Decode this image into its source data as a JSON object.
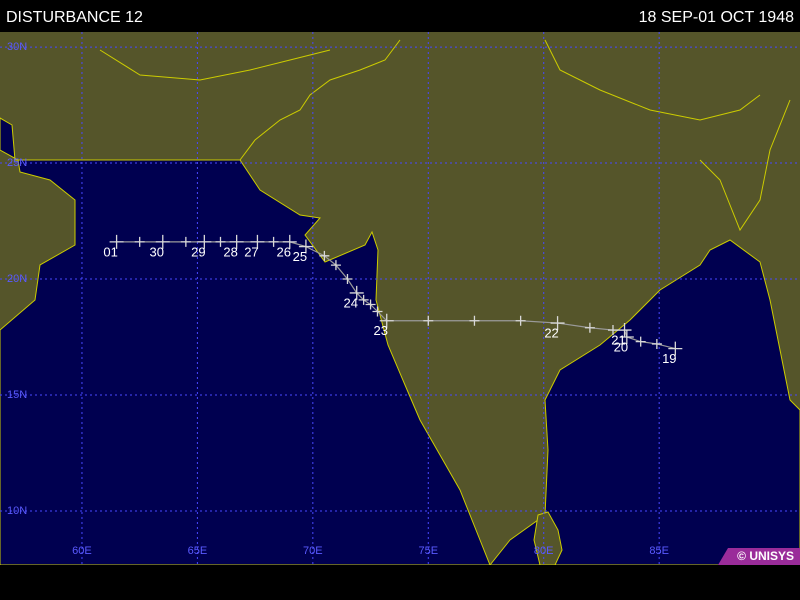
{
  "header": {
    "title": "DISTURBANCE 12",
    "dates": "18 SEP-01 OCT 1948"
  },
  "map": {
    "lonlim": [
      56.45,
      91.1
    ],
    "latlim": [
      7.67,
      30.65
    ],
    "lon_ticks": [
      {
        "value": 60,
        "label": "60E"
      },
      {
        "value": 65,
        "label": "65E"
      },
      {
        "value": 70,
        "label": "70E"
      },
      {
        "value": 75,
        "label": "75E"
      },
      {
        "value": 80,
        "label": "80E"
      },
      {
        "value": 85,
        "label": "85E"
      }
    ],
    "lat_ticks": [
      {
        "value": 30,
        "label": "30N"
      },
      {
        "value": 25,
        "label": "25N"
      },
      {
        "value": 20,
        "label": "20N"
      },
      {
        "value": 15,
        "label": "15N"
      },
      {
        "value": 10,
        "label": "10N"
      }
    ],
    "track": {
      "lon": [
        85.7,
        84.9,
        84.2,
        83.6,
        83.5,
        83.0,
        82.0,
        80.6,
        79.0,
        77.0,
        75.0,
        73.2,
        72.8,
        72.5,
        72.2,
        71.9,
        71.5,
        71.0,
        70.5,
        69.7,
        69.0,
        68.3,
        67.6,
        66.7,
        66.0,
        65.3,
        64.5,
        63.5,
        62.5,
        61.5
      ],
      "lat": [
        17.0,
        17.2,
        17.3,
        17.5,
        17.8,
        17.8,
        17.9,
        18.1,
        18.2,
        18.2,
        18.2,
        18.2,
        18.6,
        18.9,
        19.1,
        19.4,
        20.0,
        20.6,
        21.0,
        21.4,
        21.6,
        21.6,
        21.6,
        21.6,
        21.6,
        21.6,
        21.6,
        21.6,
        21.6,
        21.6
      ],
      "labels": [
        "19",
        null,
        null,
        "20",
        "21",
        null,
        null,
        "22",
        null,
        null,
        null,
        "23",
        null,
        null,
        null,
        "24",
        null,
        null,
        null,
        "25",
        "26",
        null,
        "27",
        "28",
        null,
        "29",
        null,
        "30",
        null,
        "01"
      ]
    }
  },
  "footer": {
    "credit": "© UNISYS"
  }
}
